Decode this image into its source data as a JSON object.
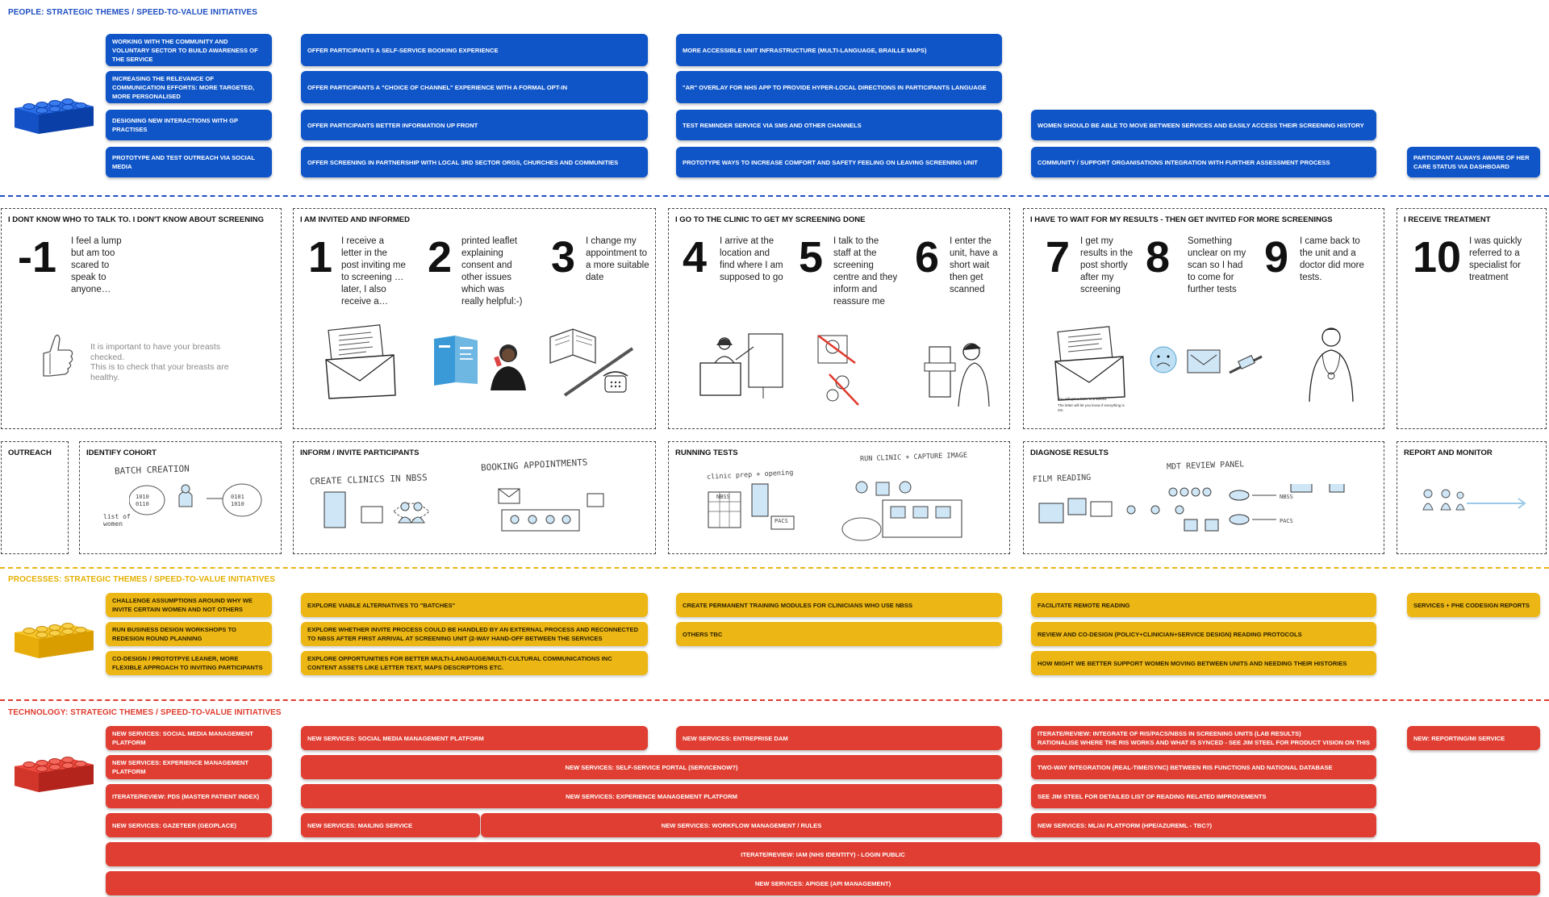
{
  "people": {
    "title": "PEOPLE: STRATEGIC THEMES / SPEED-TO-VALUE INITIATIVES",
    "col1": [
      "WORKING WITH THE COMMUNITY AND VOLUNTARY SECTOR TO BUILD AWARENESS OF THE SERVICE",
      "INCREASING THE RELEVANCE OF COMMUNICATION EFFORTS: MORE TARGETED, MORE PERSONALISED",
      "DESIGNING NEW INTERACTIONS WITH GP PRACTISES",
      "PROTOTYPE AND TEST OUTREACH VIA SOCIAL MEDIA"
    ],
    "col2": [
      "OFFER PARTICIPANTS A SELF-SERVICE BOOKING EXPERIENCE",
      "OFFER PARTICIPANTS A \"CHOICE OF CHANNEL\" EXPERIENCE WITH A FORMAL OPT-IN",
      "OFFER PARTICIPANTS BETTER INFORMATION UP FRONT",
      "OFFER SCREENING IN PARTNERSHIP WITH LOCAL 3RD SECTOR ORGS, CHURCHES AND COMMUNITIES"
    ],
    "col3": [
      "MORE ACCESSIBLE UNIT INFRASTRUCTURE (MULTI-LANGUAGE, BRAILLE MAPS)",
      "\"AR\" OVERLAY FOR NHS APP TO PROVIDE HYPER-LOCAL DIRECTIONS IN PARTICIPANTS LANGUAGE",
      "TEST REMINDER SERVICE VIA SMS AND OTHER CHANNELS",
      "PROTOTYPE WAYS TO INCREASE COMFORT AND SAFETY FEELING ON LEAVING SCREENING UNIT"
    ],
    "col4": [
      "WOMEN SHOULD BE ABLE TO MOVE BETWEEN SERVICES AND EASILY ACCESS THEIR SCREENING HISTORY",
      "COMMUNITY / SUPPORT ORGANISATIONS INTEGRATION WITH FURTHER ASSESSMENT PROCESS"
    ],
    "col5": [
      "PARTICIPANT ALWAYS AWARE OF HER CARE STATUS VIA DASHBOARD"
    ]
  },
  "journey": {
    "phases": [
      "I DONT KNOW WHO TO TALK TO. I DON'T KNOW ABOUT SCREENING",
      "I AM INVITED AND INFORMED",
      "I GO TO THE CLINIC TO GET MY SCREENING DONE",
      "I HAVE TO WAIT FOR MY RESULTS - THEN GET INVITED FOR MORE SCREENINGS",
      "I RECEIVE TREATMENT"
    ],
    "steps": [
      {
        "num": "-1",
        "text": "I feel a lump but am too scared to speak to anyone…"
      },
      {
        "num": "1",
        "text": "I receive a letter in the post inviting me to screening … later, I also receive a…"
      },
      {
        "num": "2",
        "text": "printed leaflet explaining consent and other issues which was really helpful:-)"
      },
      {
        "num": "3",
        "text": "I change my appointment to a more suitable date"
      },
      {
        "num": "4",
        "text": "I arrive at the location and find where I am supposed to go"
      },
      {
        "num": "5",
        "text": "I talk to the staff at the screening centre and they inform and reassure me"
      },
      {
        "num": "6",
        "text": "I enter the unit, have a short wait then get scanned"
      },
      {
        "num": "7",
        "text": "I get my results in the post shortly after my screening"
      },
      {
        "num": "8",
        "text": "Something unclear on my scan so I had to come for further tests"
      },
      {
        "num": "9",
        "text": "I came back to the unit and a doctor did more tests."
      },
      {
        "num": "10",
        "text": "I was quickly referred to a specialist for treatment"
      }
    ],
    "grey_note": "It is important to have your breasts checked.\nThis is to check that your breasts are healthy.",
    "letter_note_1": "You will get a letter in 2 weeks.",
    "letter_note_2": "The letter will let you know if everything is OK."
  },
  "backstage": {
    "stages": [
      "OUTREACH",
      "IDENTIFY COHORT",
      "INFORM / INVITE PARTICIPANTS",
      "RUNNING TESTS",
      "DIAGNOSE RESULTS",
      "REPORT AND MONITOR"
    ]
  },
  "processes": {
    "title": "PROCESSES: STRATEGIC THEMES / SPEED-TO-VALUE INITIATIVES",
    "col1": [
      "CHALLENGE ASSUMPTIONS AROUND WHY WE INVITE CERTAIN WOMEN AND NOT OTHERS",
      "RUN BUSINESS DESIGN WORKSHOPS TO REDESIGN ROUND PLANNING",
      "CO-DESIGN / PROTOTPYE LEANER, MORE FLEXIBLE APPROACH TO INVITING PARTICIPANTS"
    ],
    "col2": [
      "EXPLORE VIABLE ALTERNATIVES TO \"BATCHES\"",
      "EXPLORE WHETHER INVITE PROCESS COULD BE HANDLED BY AN EXTERNAL PROCESS AND RECONNECTED TO NBSS AFTER FIRST ARRIVAL AT SCREENING UNIT (2-WAY HAND-OFF BETWEEN THE SERVICES",
      "EXPLORE OPPORTUNITIES FOR BETTER MULTI-LANGAUGE/MULTI-CULTURAL COMMUNICATIONS INC CONTENT ASSETS LIKE LETTER TEXT, MAPS DESCRIPTORS ETC."
    ],
    "col3": [
      "CREATE PERMANENT TRAINING MODULES FOR CLINICIANS WHO USE NBSS",
      "OTHERS TBC"
    ],
    "col4": [
      "FACILITATE REMOTE READING",
      "REVIEW AND CO-DESIGN (POLICY+CLINICIAN+SERVICE DESIGN) READING PROTOCOLS",
      "HOW MIGHT WE BETTER SUPPORT WOMEN MOVING BETWEEN UNITS AND NEEDING THEIR HISTORIES"
    ],
    "col5": [
      "SERVICES + PHE CODESIGN REPORTS"
    ]
  },
  "technology": {
    "title": "TECHNOLOGY: STRATEGIC THEMES / SPEED-TO-VALUE INITIATIVES",
    "col1": [
      "NEW SERVICES: SOCIAL MEDIA MANAGEMENT PLATFORM",
      "NEW SERVICES: EXPERIENCE MANAGEMENT PLATFORM",
      "ITERATE/REVIEW: PDS (MASTER PATIENT INDEX)",
      "NEW SERVICES:  GAZETEER (GEOPLACE)"
    ],
    "row1_b": "NEW SERVICES: SOCIAL MEDIA MANAGEMENT PLATFORM",
    "row1_c": "NEW SERVICES: ENTREPRISE DAM",
    "row1_d": "ITERATE/REVIEW:  INTEGRATE OF RIS/PACS/NBSS IN SCREENING UNITS (LAB RESULTS)\nRATIONALISE WHERE THE RIS WORKS AND WHAT IS SYNCED - SEE JIM STEEL FOR PRODUCT VISION ON THIS",
    "row1_e": "NEW: REPORTING/MI SERVICE",
    "row2_wide": "NEW SERVICES: SELF-SERVICE PORTAL (SERVICENOW?)",
    "row2_d": "TWO-WAY INTEGRATION (REAL-TIME/SYNC) BETWEEN RIS FUNCTIONS AND NATIONAL DATABASE",
    "row3_wide": "NEW SERVICES: EXPERIENCE MANAGEMENT PLATFORM",
    "row3_d": "SEE JIM STEEL FOR DETAILED LIST OF READING RELATED IMPROVEMENTS",
    "row4_b": "NEW SERVICES: MAILING SERVICE",
    "row4_c": "NEW SERVICES: WORKFLOW MANAGEMENT / RULES",
    "row4_d": "NEW SERVICES: ML/AI PLATFORM (HPE/AzureML - TBC?)",
    "row5": "ITERATE/REVIEW: IAM (NHS IDENTITY) - LOGIN PUBLIC",
    "row6": "NEW SERVICES: APIGEE (API MANAGEMENT)"
  },
  "sketch_labels": {
    "batch": "BATCH CREATION",
    "list": "list of women",
    "create_clinics": "CREATE CLINICS IN NBSS",
    "booking": "BOOKING APPOINTMENTS",
    "clinic_prep": "clinic prep + opening",
    "nbss": "NBSS",
    "pacs": "PACS",
    "run_clinic": "RUN CLINIC + CAPTURE IMAGE",
    "film": "FILM READING",
    "mdt": "MDT REVIEW PANEL",
    "nbss2": "NBSS",
    "pacs2": "PACS"
  },
  "colors": {
    "blue": "#0f55c8",
    "yellow": "#ecb714",
    "red": "#e03e33"
  }
}
